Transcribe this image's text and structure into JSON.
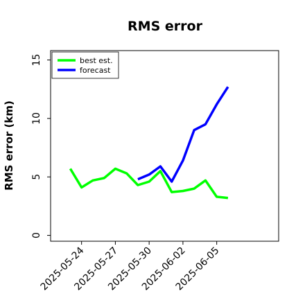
{
  "chart_data": {
    "type": "line",
    "title": "RMS error",
    "xlabel": "",
    "ylabel": "RMS error (km)",
    "ylim": [
      -0.5,
      15.8
    ],
    "xlim": [
      "2025-05-21T06:00",
      "2025-06-10T12:00"
    ],
    "yticks": [
      0,
      5,
      10,
      15
    ],
    "yticklabels": [
      "0",
      "5",
      "10",
      "15"
    ],
    "xticks": [
      "2025-05-24",
      "2025-05-27",
      "2025-05-30",
      "2025-06-02",
      "2025-06-05"
    ],
    "xticklabels": [
      "2025-05-24",
      "2025-05-27",
      "2025-05-30",
      "2025-06-02",
      "2025-06-05"
    ],
    "grid": false,
    "legend_position": "top-left",
    "series": [
      {
        "name": "best est.",
        "color": "#00ff00",
        "x": [
          "2025-05-23",
          "2025-05-24",
          "2025-05-25",
          "2025-05-26",
          "2025-05-27",
          "2025-05-28",
          "2025-05-29",
          "2025-05-30",
          "2025-05-31",
          "2025-06-01",
          "2025-06-02",
          "2025-06-03",
          "2025-06-04",
          "2025-06-05",
          "2025-06-06"
        ],
        "values": [
          5.7,
          4.1,
          4.7,
          4.9,
          5.7,
          5.3,
          4.3,
          4.6,
          5.5,
          3.7,
          3.8,
          4.0,
          4.7,
          3.3,
          3.2
        ]
      },
      {
        "name": "forecast",
        "color": "#0000ff",
        "x": [
          "2025-05-29",
          "2025-05-30",
          "2025-05-31",
          "2025-06-01",
          "2025-06-02",
          "2025-06-03",
          "2025-06-04",
          "2025-06-05",
          "2025-06-06"
        ],
        "values": [
          4.8,
          5.2,
          5.9,
          4.6,
          6.4,
          9.0,
          9.5,
          11.2,
          12.7
        ]
      }
    ]
  }
}
